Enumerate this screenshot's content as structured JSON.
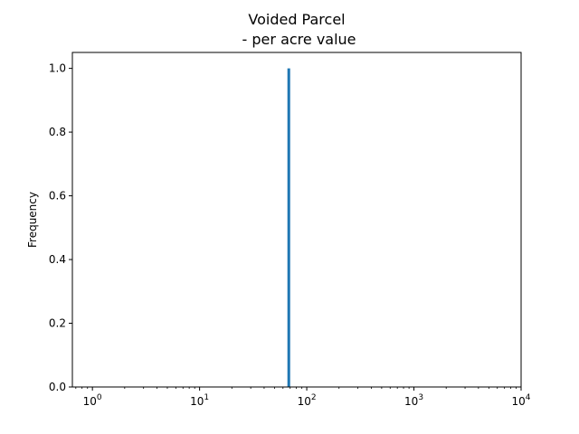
{
  "chart_data": {
    "type": "bar",
    "title": "Voided Parcel",
    "subtitle": " - per acre value",
    "xlabel": "",
    "ylabel": "Frequency",
    "xscale": "log",
    "xlim": [
      0.65,
      10000
    ],
    "ylim": [
      0,
      1.05
    ],
    "x_ticks": [
      {
        "value": 1,
        "base": "10",
        "exp": "0"
      },
      {
        "value": 10,
        "base": "10",
        "exp": "1"
      },
      {
        "value": 100,
        "base": "10",
        "exp": "2"
      },
      {
        "value": 1000,
        "base": "10",
        "exp": "3"
      },
      {
        "value": 10000,
        "base": "10",
        "exp": "4"
      }
    ],
    "y_ticks": [
      "0.0",
      "0.2",
      "0.4",
      "0.6",
      "0.8",
      "1.0"
    ],
    "bars": [
      {
        "x_start": 66,
        "x_end": 70,
        "value": 1.0
      }
    ],
    "bar_color": "#1f77b4",
    "grid": false,
    "legend": "none"
  }
}
